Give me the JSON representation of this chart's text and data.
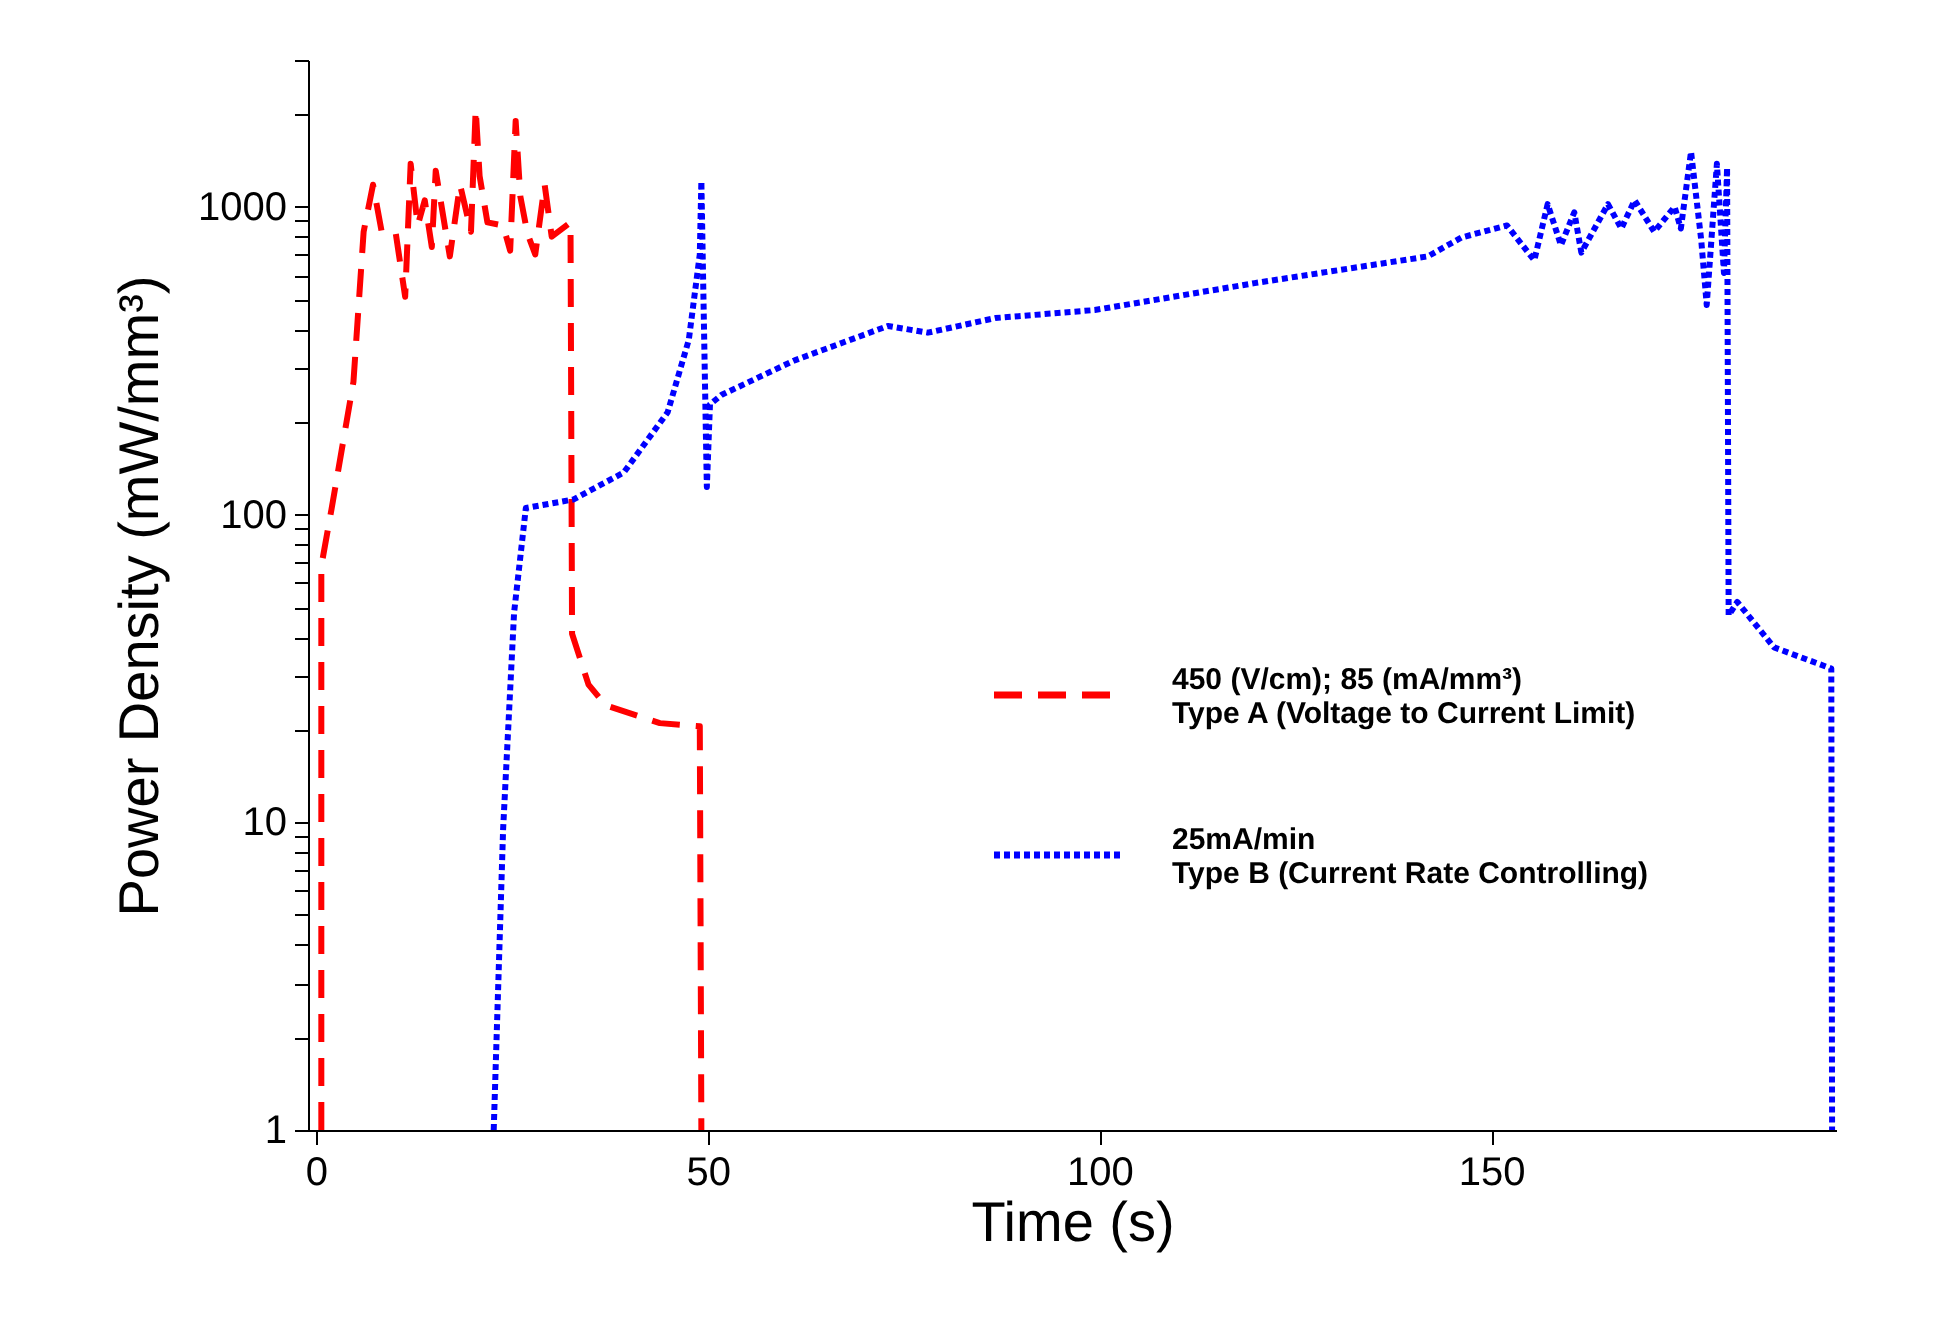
{
  "chart_data": {
    "type": "line",
    "xlabel": "Time (s)",
    "ylabel": "Power Density (mW/mm³)",
    "log": "y",
    "grid": false,
    "legend": "right",
    "marker": "none",
    "xlim": [
      -1,
      194
    ],
    "xticks": [
      0,
      50,
      100,
      150
    ],
    "ylim": [
      1,
      3000
    ],
    "yticks": [
      1,
      {
        "value": 2,
        "label": null
      },
      {
        "value": 3,
        "label": null
      },
      {
        "value": 4,
        "label": null
      },
      {
        "value": 5,
        "label": null
      },
      {
        "value": 6,
        "label": null
      },
      {
        "value": 7,
        "label": null
      },
      {
        "value": 8,
        "label": null
      },
      {
        "value": 9,
        "label": null
      },
      10,
      {
        "value": 20,
        "label": null
      },
      {
        "value": 30,
        "label": null
      },
      {
        "value": 40,
        "label": null
      },
      {
        "value": 50,
        "label": null
      },
      {
        "value": 60,
        "label": null
      },
      {
        "value": 70,
        "label": null
      },
      {
        "value": 80,
        "label": null
      },
      {
        "value": 90,
        "label": null
      },
      100,
      {
        "value": 200,
        "label": null
      },
      {
        "value": 300,
        "label": null
      },
      {
        "value": 400,
        "label": null
      },
      {
        "value": 500,
        "label": null
      },
      {
        "value": 600,
        "label": null
      },
      {
        "value": 700,
        "label": null
      },
      {
        "value": 800,
        "label": null
      },
      {
        "value": 900,
        "label": null
      },
      1000,
      {
        "value": 2000,
        "label": null
      },
      {
        "value": 3000,
        "label": null
      }
    ],
    "series": [
      {
        "name": "450 (V/cm); 85 (mA/mm³)\nType A (Voltage to Current Limit)",
        "color": "#ff0000",
        "line_style": "dashed",
        "x": [
          0.7,
          0.7,
          2.0,
          4.8,
          6.1,
          7.3,
          8.4,
          10.2,
          11.4,
          12.1,
          13.0,
          13.9,
          14.8,
          15.3,
          17.1,
          18.4,
          19.8,
          20.4,
          20.9,
          21.9,
          23.9,
          24.8,
          25.5,
          26.1,
          27.0,
          28.0,
          29.2,
          30.1,
          32.5,
          32.7,
          34.8,
          37.0,
          43.9,
          49.0,
          49.2
        ],
        "values": [
          1,
          68,
          104,
          270,
          830,
          1180,
          830,
          820,
          510,
          1380,
          870,
          1050,
          740,
          1310,
          690,
          1180,
          830,
          2080,
          1260,
          890,
          870,
          720,
          1900,
          1080,
          820,
          700,
          1180,
          800,
          890,
          41,
          28,
          24,
          21,
          20.5,
          1
        ]
      },
      {
        "name": "25mA/min\nType B (Current Rate Controlling)",
        "color": "#0000ff",
        "line_style": "dotted",
        "x": [
          22.7,
          23.9,
          25.3,
          26.8,
          32.9,
          39.3,
          44.9,
          47.6,
          49.0,
          49.2,
          49.9,
          50.3,
          51.8,
          61.1,
          73.0,
          78.1,
          86.7,
          99.4,
          118.0,
          119.8,
          141.9,
          146.2,
          152.0,
          155.5,
          157.2,
          158.9,
          160.6,
          161.5,
          164.9,
          166.6,
          168.3,
          170.8,
          173.4,
          174.2,
          175.5,
          176.8,
          177.5,
          178.8,
          179.7,
          180.1,
          180.3,
          181.4,
          186.1,
          193.4,
          193.5
        ],
        "values": [
          1,
          9.5,
          48,
          105,
          112,
          137,
          215,
          370,
          700,
          1210,
          123,
          228,
          245,
          317,
          410,
          390,
          435,
          462,
          555,
          565,
          690,
          795,
          870,
          670,
          1020,
          750,
          960,
          710,
          1020,
          850,
          1050,
          830,
          1000,
          850,
          1510,
          780,
          480,
          1380,
          610,
          1340,
          47,
          52,
          37,
          31.6,
          1
        ]
      }
    ]
  }
}
